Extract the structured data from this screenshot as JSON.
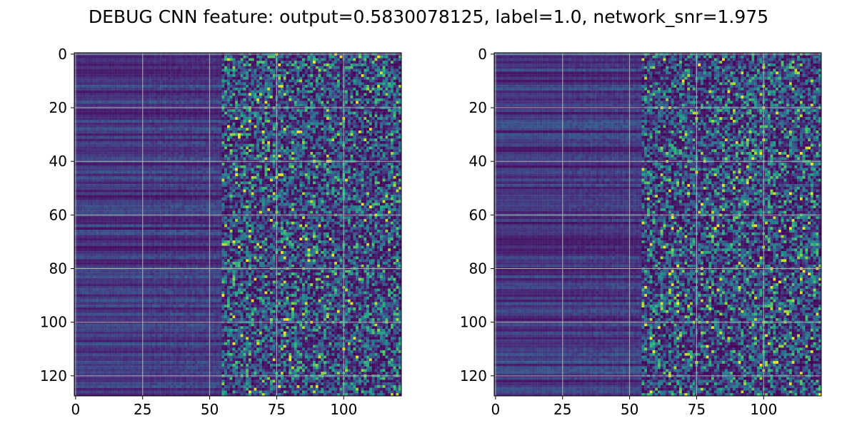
{
  "chart_data": {
    "type": "heatmap",
    "title": "DEBUG CNN feature: output=0.5830078125, label=1.0, network_snr=1.975",
    "colormap": "viridis",
    "grid": true,
    "grid_color": "#b0b0b0",
    "panels": [
      {
        "name": "left",
        "xlim": [
          -0.5,
          121.5
        ],
        "ylim": [
          127.5,
          -0.5
        ],
        "xticks": [
          0,
          25,
          50,
          75,
          100
        ],
        "yticks": [
          0,
          20,
          40,
          60,
          80,
          100,
          120
        ],
        "xtick_labels": [
          "0",
          "25",
          "50",
          "75",
          "100"
        ],
        "ytick_labels": [
          "0",
          "20",
          "40",
          "60",
          "80",
          "100",
          "120"
        ]
      },
      {
        "name": "right",
        "xlim": [
          -0.5,
          121.5
        ],
        "ylim": [
          127.5,
          -0.5
        ],
        "xticks": [
          0,
          25,
          50,
          75,
          100
        ],
        "yticks": [
          0,
          20,
          40,
          60,
          80,
          100,
          120
        ],
        "xtick_labels": [
          "0",
          "25",
          "50",
          "75",
          "100"
        ],
        "ytick_labels": [
          "0",
          "20",
          "40",
          "60",
          "80",
          "100",
          "120"
        ]
      }
    ],
    "dims": {
      "rows": 128,
      "cols": 122
    }
  }
}
